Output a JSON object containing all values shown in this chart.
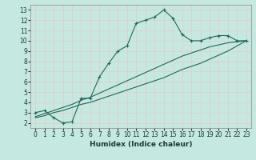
{
  "title": "",
  "xlabel": "Humidex (Indice chaleur)",
  "ylabel": "",
  "bg_color": "#c5e8e0",
  "plot_bg_color": "#c5e8e0",
  "grid_color": "#e8c8c8",
  "line_color": "#1a6b5a",
  "xlim": [
    -0.5,
    23.5
  ],
  "ylim": [
    1.5,
    13.5
  ],
  "xticks": [
    0,
    1,
    2,
    3,
    4,
    5,
    6,
    7,
    8,
    9,
    10,
    11,
    12,
    13,
    14,
    15,
    16,
    17,
    18,
    19,
    20,
    21,
    22,
    23
  ],
  "yticks": [
    2,
    3,
    4,
    5,
    6,
    7,
    8,
    9,
    10,
    11,
    12,
    13
  ],
  "line1_x": [
    0,
    1,
    2,
    3,
    4,
    5,
    6,
    7,
    8,
    9,
    10,
    11,
    12,
    13,
    14,
    15,
    16,
    17,
    18,
    19,
    20,
    21,
    22,
    23
  ],
  "line1_y": [
    3.0,
    3.2,
    2.5,
    2.0,
    2.1,
    4.4,
    4.4,
    6.5,
    7.8,
    9.0,
    9.5,
    11.7,
    12.0,
    12.3,
    13.0,
    12.2,
    10.6,
    10.0,
    10.0,
    10.3,
    10.5,
    10.5,
    10.0,
    10.0
  ],
  "line2_x": [
    0,
    1,
    2,
    3,
    4,
    5,
    6,
    7,
    8,
    9,
    10,
    11,
    12,
    13,
    14,
    15,
    16,
    17,
    18,
    19,
    20,
    21,
    22,
    23
  ],
  "line2_y": [
    2.5,
    2.7,
    3.0,
    3.2,
    3.5,
    3.8,
    4.0,
    4.3,
    4.6,
    4.9,
    5.2,
    5.5,
    5.8,
    6.1,
    6.4,
    6.8,
    7.2,
    7.5,
    7.8,
    8.2,
    8.6,
    9.0,
    9.5,
    10.0
  ],
  "line3_x": [
    0,
    1,
    2,
    3,
    4,
    5,
    6,
    7,
    8,
    9,
    10,
    11,
    12,
    13,
    14,
    15,
    16,
    17,
    18,
    19,
    20,
    21,
    22,
    23
  ],
  "line3_y": [
    2.6,
    2.9,
    3.2,
    3.5,
    3.8,
    4.2,
    4.5,
    4.9,
    5.3,
    5.7,
    6.1,
    6.5,
    6.9,
    7.3,
    7.7,
    8.1,
    8.5,
    8.8,
    9.1,
    9.4,
    9.6,
    9.8,
    9.9,
    10.0
  ],
  "tick_fontsize": 5.5,
  "xlabel_fontsize": 6.5,
  "marker_size": 2.5,
  "linewidth": 0.8
}
